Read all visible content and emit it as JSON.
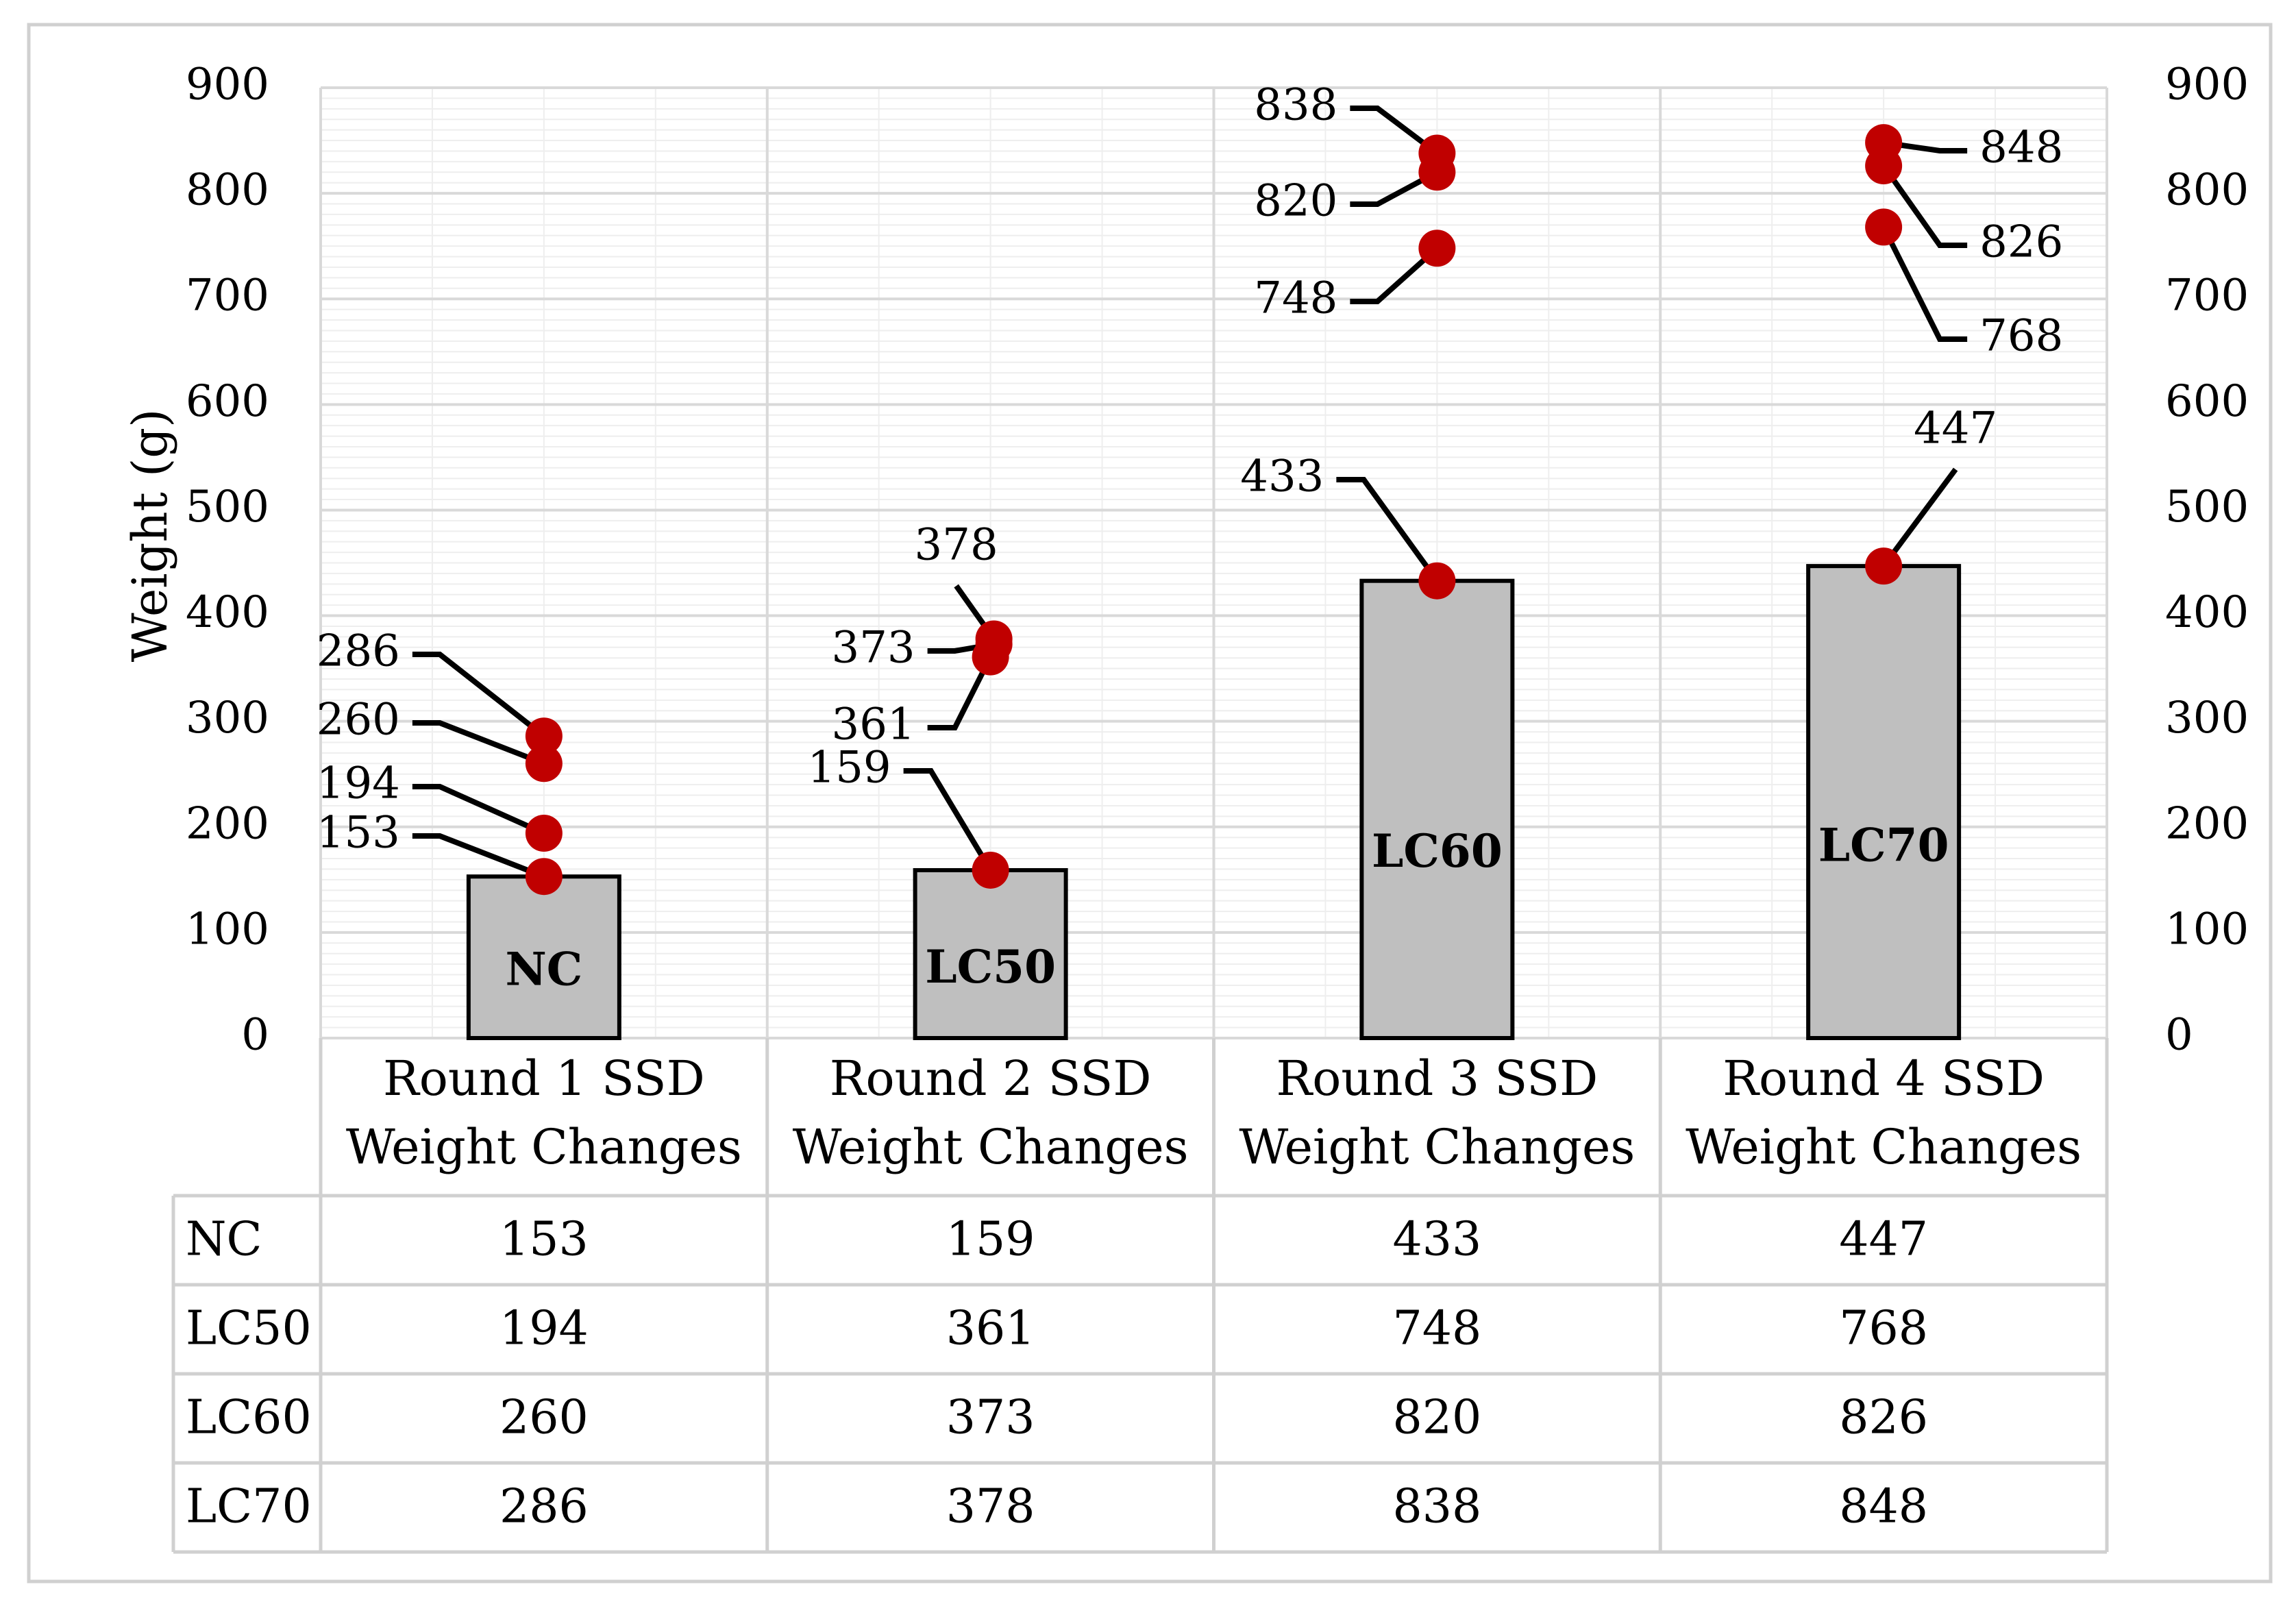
{
  "chart_data": {
    "type": "bar",
    "ylabel": "Weight (g)",
    "ylim": [
      0,
      900
    ],
    "y_ticks": [
      0,
      100,
      200,
      300,
      400,
      500,
      600,
      700,
      800,
      900
    ],
    "grid": true,
    "secondary_y_axis": true,
    "categories": [
      [
        "Round 1 SSD",
        "Weight Changes"
      ],
      [
        "Round 2 SSD",
        "Weight Changes"
      ],
      [
        "Round 3 SSD",
        "Weight Changes"
      ],
      [
        "Round 4 SSD",
        "Weight Changes"
      ]
    ],
    "bar_labels": [
      "NC",
      "LC50",
      "LC60",
      "LC70"
    ],
    "series": [
      {
        "name": "NC",
        "style": "bar",
        "values": [
          153,
          159,
          433,
          447
        ]
      },
      {
        "name": "LC50",
        "style": "marker",
        "values": [
          194,
          361,
          748,
          768
        ]
      },
      {
        "name": "LC60",
        "style": "marker",
        "values": [
          260,
          373,
          820,
          826
        ]
      },
      {
        "name": "LC70",
        "style": "marker",
        "values": [
          286,
          378,
          838,
          848
        ]
      }
    ],
    "point_labels": [
      [
        "286",
        "260",
        "194",
        "153"
      ],
      [
        "378",
        "373",
        "361",
        "159"
      ],
      [
        "838",
        "820",
        "748",
        "433"
      ],
      [
        "848",
        "826",
        "768",
        "447"
      ]
    ],
    "colors": {
      "bar_fill": "#bfbfbf",
      "bar_stroke": "#000000",
      "marker": "#c00000",
      "grid_major": "#d9d9d9",
      "grid_minor": "#eeeeee",
      "border": "#d0d0d0"
    }
  }
}
